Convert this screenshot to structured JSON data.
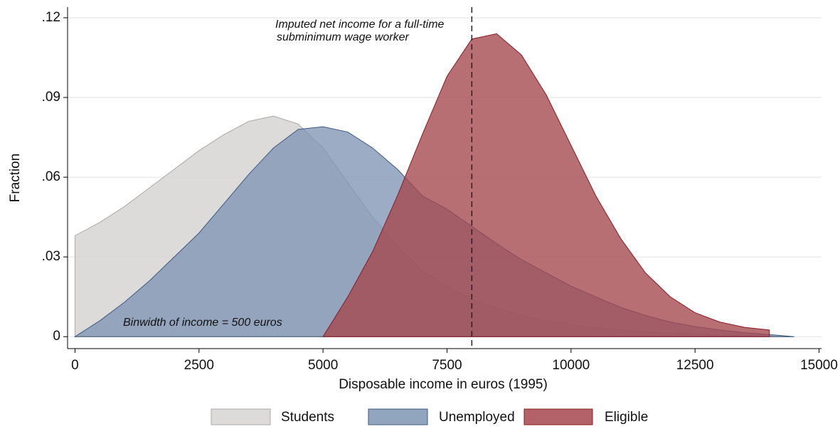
{
  "chart_data": {
    "type": "area",
    "x_label": "Disposable income in euros (1995)",
    "y_label": "Fraction",
    "x": [
      0,
      500,
      1000,
      1500,
      2000,
      2500,
      3000,
      3500,
      4000,
      4500,
      5000,
      5500,
      6000,
      6500,
      7000,
      7500,
      8000,
      8500,
      9000,
      9500,
      10000,
      10500,
      11000,
      11500,
      12000,
      12500,
      13000,
      13500,
      14000,
      14500
    ],
    "series": [
      {
        "name": "Students",
        "color": "#d6d5d3",
        "edge": "#aaaaaa",
        "values": [
          0.038,
          0.043,
          0.049,
          0.056,
          0.063,
          0.07,
          0.076,
          0.081,
          0.083,
          0.08,
          0.071,
          0.058,
          0.045,
          0.034,
          0.025,
          0.019,
          0.014,
          0.011,
          0.008,
          0.006,
          0.0045,
          0.0035,
          0.0025,
          0.0018,
          0.0013,
          0.001,
          0.0007,
          0.0005,
          0.0003,
          0
        ]
      },
      {
        "name": "Unemployed",
        "color": "#7f95b3",
        "edge": "#3d5a80",
        "values": [
          0,
          0.006,
          0.013,
          0.021,
          0.03,
          0.039,
          0.05,
          0.061,
          0.071,
          0.078,
          0.079,
          0.077,
          0.071,
          0.063,
          0.053,
          0.048,
          0.0415,
          0.035,
          0.029,
          0.024,
          0.019,
          0.015,
          0.011,
          0.008,
          0.0055,
          0.0038,
          0.0025,
          0.0015,
          0.0008,
          0
        ]
      },
      {
        "name": "Eligible",
        "color": "#a4474d",
        "edge": "#8b1a22",
        "values": [
          null,
          null,
          null,
          null,
          null,
          null,
          null,
          null,
          null,
          null,
          0,
          0.015,
          0.032,
          0.053,
          0.076,
          0.098,
          0.112,
          0.114,
          0.106,
          0.091,
          0.072,
          0.053,
          0.037,
          0.024,
          0.015,
          0.009,
          0.0055,
          0.0035,
          0.0025,
          null
        ]
      }
    ],
    "xlim": [
      -150,
      15050
    ],
    "ylim": [
      -0.0045,
      0.124
    ],
    "xticks": [
      0,
      2500,
      5000,
      7500,
      10000,
      12500,
      15000
    ],
    "yticks": [
      0,
      {
        "value": 0.03,
        "label": ".03"
      },
      {
        "value": 0.06,
        "label": ".06"
      },
      {
        "value": 0.09,
        "label": ".09"
      },
      {
        "value": 0.12,
        "label": ".12"
      }
    ],
    "grid": true,
    "legend": "bottom",
    "vline": 8000,
    "vline_label": [
      "Imputed net income for a full-time",
      "subminimum wage worker"
    ],
    "note": "Binwidth of income = 500 euros"
  }
}
